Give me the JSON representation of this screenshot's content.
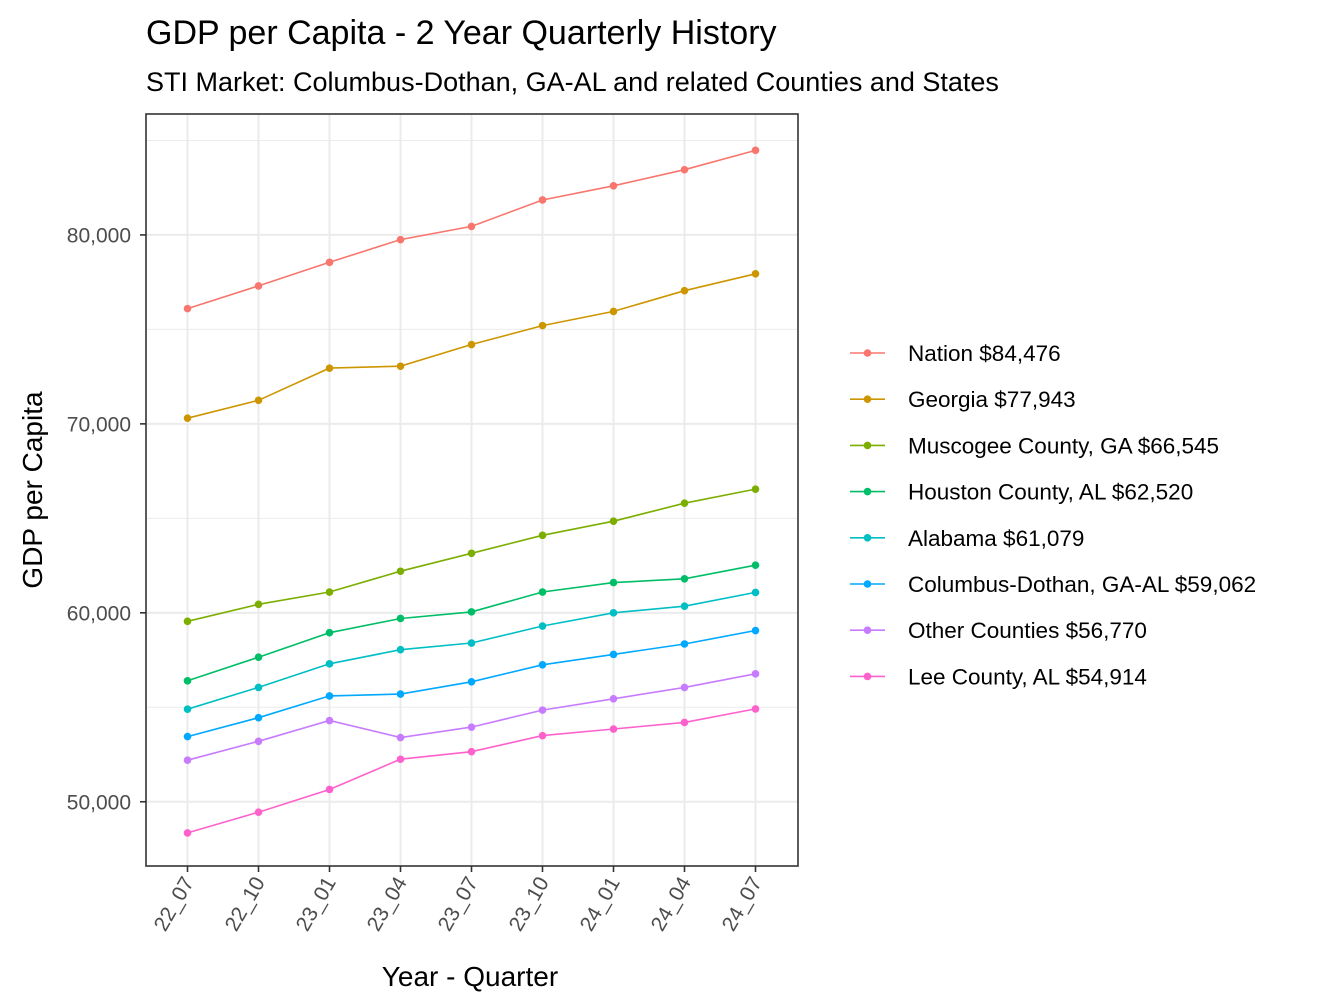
{
  "chart_data": {
    "type": "line",
    "title": "GDP per Capita - 2 Year Quarterly History",
    "subtitle": "STI Market: Columbus-Dothan,  GA-AL and related Counties and States",
    "xlabel": "Year - Quarter",
    "ylabel": "GDP per Capita",
    "categories": [
      "22_07",
      "22_10",
      "23_01",
      "23_04",
      "23_07",
      "23_10",
      "24_01",
      "24_04",
      "24_07"
    ],
    "ylim": [
      46600,
      86400
    ],
    "y_ticks": [
      50000,
      60000,
      70000,
      80000
    ],
    "y_tick_labels": [
      "50,000",
      "60,000",
      "70,000",
      "80,000"
    ],
    "grid": true,
    "legend_position": "right",
    "series": [
      {
        "name": "Nation $84,476",
        "color": "#F8766D",
        "values": [
          76100,
          77300,
          78550,
          79750,
          80450,
          81850,
          82600,
          83450,
          84476
        ]
      },
      {
        "name": "Georgia $77,943",
        "color": "#CD9600",
        "values": [
          70300,
          71250,
          72950,
          73050,
          74200,
          75200,
          75950,
          77050,
          77943
        ]
      },
      {
        "name": "Muscogee County, GA $66,545",
        "color": "#7CAE00",
        "values": [
          59550,
          60450,
          61100,
          62200,
          63150,
          64100,
          64850,
          65800,
          66545
        ]
      },
      {
        "name": "Houston County, AL $62,520",
        "color": "#00BE67",
        "values": [
          56400,
          57650,
          58950,
          59700,
          60050,
          61100,
          61600,
          61800,
          62520
        ]
      },
      {
        "name": "Alabama $61,079",
        "color": "#00BFC4",
        "values": [
          54900,
          56050,
          57300,
          58050,
          58400,
          59300,
          60000,
          60350,
          61079
        ]
      },
      {
        "name": "Columbus-Dothan,  GA-AL $59,062",
        "color": "#00A9FF",
        "values": [
          53450,
          54450,
          55600,
          55700,
          56350,
          57250,
          57800,
          58350,
          59062
        ]
      },
      {
        "name": "Other Counties $56,770",
        "color": "#C77CFF",
        "values": [
          52200,
          53200,
          54300,
          53400,
          53950,
          54850,
          55450,
          56050,
          56770
        ]
      },
      {
        "name": "Lee County, AL $54,914",
        "color": "#FF61CC",
        "values": [
          48350,
          49450,
          50650,
          52250,
          52650,
          53500,
          53850,
          54200,
          54914
        ]
      }
    ]
  }
}
